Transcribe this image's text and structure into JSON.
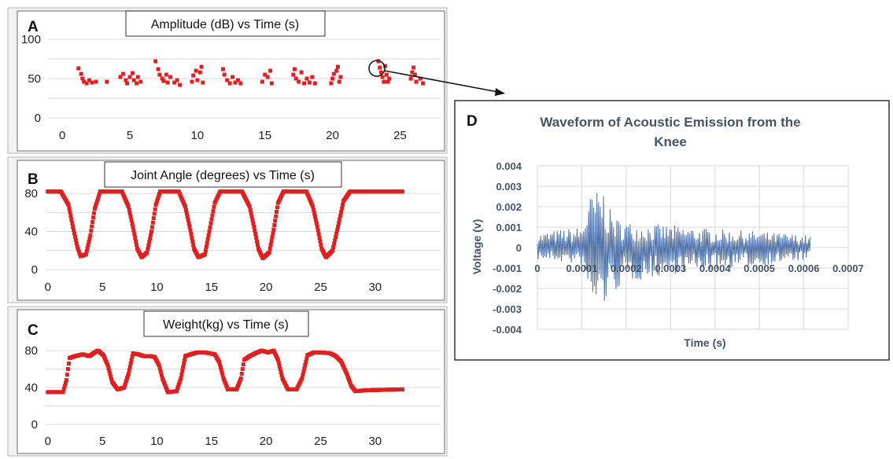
{
  "colors": {
    "red_series": "#e02020",
    "blue_series": "#4f72a8",
    "d_text": "#44546a"
  },
  "chart_data": [
    {
      "panel": "A",
      "type": "scatter",
      "title": "Amplitude (dB) vs Time (s)",
      "xlabel": "",
      "ylabel": "",
      "xlim": [
        -1,
        28
      ],
      "ylim": [
        0,
        110
      ],
      "x_ticks": [
        0,
        5,
        10,
        15,
        20,
        25
      ],
      "y_ticks": [
        0,
        50,
        100
      ],
      "series": [
        {
          "points": [
            [
              1.2,
              63
            ],
            [
              1.4,
              56
            ],
            [
              1.5,
              50
            ],
            [
              1.6,
              46
            ],
            [
              1.8,
              44
            ],
            [
              2.0,
              48
            ],
            [
              2.2,
              45
            ],
            [
              2.5,
              46
            ],
            [
              3.3,
              46
            ],
            [
              4.3,
              52
            ],
            [
              4.5,
              56
            ],
            [
              4.7,
              48
            ],
            [
              4.8,
              44
            ],
            [
              5.0,
              52
            ],
            [
              5.2,
              57
            ],
            [
              5.3,
              48
            ],
            [
              5.5,
              44
            ],
            [
              5.6,
              52
            ],
            [
              5.8,
              46
            ],
            [
              6.9,
              72
            ],
            [
              7.1,
              62
            ],
            [
              7.2,
              55
            ],
            [
              7.4,
              50
            ],
            [
              7.5,
              47
            ],
            [
              7.7,
              55
            ],
            [
              7.8,
              45
            ],
            [
              8.0,
              52
            ],
            [
              8.3,
              45
            ],
            [
              8.5,
              48
            ],
            [
              8.7,
              42
            ],
            [
              9.6,
              46
            ],
            [
              9.7,
              54
            ],
            [
              9.9,
              60
            ],
            [
              10.0,
              48
            ],
            [
              10.2,
              58
            ],
            [
              10.3,
              65
            ],
            [
              10.4,
              45
            ],
            [
              11.9,
              62
            ],
            [
              12.0,
              55
            ],
            [
              12.2,
              48
            ],
            [
              12.4,
              44
            ],
            [
              12.6,
              52
            ],
            [
              12.8,
              45
            ],
            [
              13.0,
              48
            ],
            [
              13.2,
              44
            ],
            [
              14.8,
              46
            ],
            [
              15.0,
              55
            ],
            [
              15.2,
              52
            ],
            [
              15.4,
              60
            ],
            [
              15.5,
              44
            ],
            [
              17.1,
              55
            ],
            [
              17.2,
              62
            ],
            [
              17.3,
              50
            ],
            [
              17.5,
              46
            ],
            [
              17.7,
              58
            ],
            [
              17.9,
              44
            ],
            [
              18.1,
              50
            ],
            [
              18.3,
              45
            ],
            [
              18.5,
              52
            ],
            [
              18.7,
              44
            ],
            [
              19.9,
              44
            ],
            [
              20.0,
              50
            ],
            [
              20.1,
              56
            ],
            [
              20.3,
              60
            ],
            [
              20.4,
              65
            ],
            [
              20.5,
              46
            ],
            [
              20.6,
              52
            ],
            [
              23.4,
              72
            ],
            [
              23.5,
              64
            ],
            [
              23.6,
              58
            ],
            [
              23.7,
              52
            ],
            [
              23.8,
              46
            ],
            [
              23.9,
              66
            ],
            [
              24.0,
              55
            ],
            [
              24.1,
              46
            ],
            [
              24.2,
              50
            ],
            [
              25.8,
              50
            ],
            [
              25.9,
              58
            ],
            [
              26.0,
              64
            ],
            [
              26.1,
              55
            ],
            [
              26.2,
              46
            ],
            [
              26.5,
              50
            ],
            [
              26.7,
              44
            ]
          ]
        }
      ],
      "annotation": "circled burst near t≈23.7 s, linked by arrow to panel D"
    },
    {
      "panel": "B",
      "type": "scatter",
      "title": "Joint Angle (degrees) vs Time (s)",
      "xlabel": "",
      "ylabel": "",
      "xlim": [
        -0.2,
        36
      ],
      "ylim": [
        0,
        90
      ],
      "x_ticks": [
        0,
        5,
        10,
        15,
        20,
        25,
        30
      ],
      "y_ticks": [
        0,
        40,
        80
      ],
      "series": [
        {
          "keyframes": [
            [
              0,
              82
            ],
            [
              1.2,
              82
            ],
            [
              1.9,
              68
            ],
            [
              2.3,
              45
            ],
            [
              2.7,
              24
            ],
            [
              3.0,
              14
            ],
            [
              3.5,
              16
            ],
            [
              3.9,
              36
            ],
            [
              4.3,
              64
            ],
            [
              4.8,
              82
            ],
            [
              6.8,
              82
            ],
            [
              7.4,
              66
            ],
            [
              7.8,
              45
            ],
            [
              8.2,
              22
            ],
            [
              8.6,
              13
            ],
            [
              9.1,
              18
            ],
            [
              9.5,
              40
            ],
            [
              9.9,
              68
            ],
            [
              10.3,
              82
            ],
            [
              12.0,
              82
            ],
            [
              12.6,
              66
            ],
            [
              13.0,
              45
            ],
            [
              13.4,
              22
            ],
            [
              13.8,
              13
            ],
            [
              14.4,
              16
            ],
            [
              14.8,
              40
            ],
            [
              15.3,
              70
            ],
            [
              15.8,
              82
            ],
            [
              17.8,
              82
            ],
            [
              18.5,
              66
            ],
            [
              18.9,
              45
            ],
            [
              19.3,
              22
            ],
            [
              19.7,
              12
            ],
            [
              20.3,
              18
            ],
            [
              20.7,
              42
            ],
            [
              21.1,
              70
            ],
            [
              21.6,
              82
            ],
            [
              23.7,
              82
            ],
            [
              24.3,
              66
            ],
            [
              24.7,
              45
            ],
            [
              25.1,
              22
            ],
            [
              25.5,
              13
            ],
            [
              26.1,
              20
            ],
            [
              26.6,
              45
            ],
            [
              27.1,
              72
            ],
            [
              27.7,
              82
            ],
            [
              32.5,
              82
            ]
          ]
        }
      ]
    },
    {
      "panel": "C",
      "type": "scatter",
      "title": "Weight(kg) vs Time (s)",
      "xlabel": "",
      "ylabel": "",
      "xlim": [
        -0.2,
        36
      ],
      "ylim": [
        0,
        92
      ],
      "x_ticks": [
        0,
        5,
        10,
        15,
        20,
        25,
        30
      ],
      "y_ticks": [
        0,
        40,
        80
      ],
      "series": [
        {
          "keyframes": [
            [
              0,
              35
            ],
            [
              1.4,
              35
            ],
            [
              1.7,
              48
            ],
            [
              2.0,
              72
            ],
            [
              2.5,
              74
            ],
            [
              3.2,
              76
            ],
            [
              3.8,
              74
            ],
            [
              4.3,
              78
            ],
            [
              4.6,
              80
            ],
            [
              5.1,
              75
            ],
            [
              5.5,
              64
            ],
            [
              5.9,
              46
            ],
            [
              6.4,
              38
            ],
            [
              7.0,
              40
            ],
            [
              7.4,
              55
            ],
            [
              7.8,
              77
            ],
            [
              8.3,
              76
            ],
            [
              8.8,
              74
            ],
            [
              9.4,
              74
            ],
            [
              9.8,
              73
            ],
            [
              10.2,
              64
            ],
            [
              10.5,
              50
            ],
            [
              11.0,
              35
            ],
            [
              11.8,
              36
            ],
            [
              12.2,
              50
            ],
            [
              12.6,
              74
            ],
            [
              13.1,
              76
            ],
            [
              13.7,
              78
            ],
            [
              14.4,
              78
            ],
            [
              15.3,
              76
            ],
            [
              15.7,
              68
            ],
            [
              16.1,
              50
            ],
            [
              16.5,
              38
            ],
            [
              17.3,
              38
            ],
            [
              17.7,
              50
            ],
            [
              18.0,
              70
            ],
            [
              18.5,
              74
            ],
            [
              19.0,
              77
            ],
            [
              19.6,
              80
            ],
            [
              20.2,
              78
            ],
            [
              20.7,
              80
            ],
            [
              21.1,
              70
            ],
            [
              21.5,
              50
            ],
            [
              22.0,
              38
            ],
            [
              22.8,
              38
            ],
            [
              23.3,
              50
            ],
            [
              23.8,
              75
            ],
            [
              24.4,
              78
            ],
            [
              25.1,
              78
            ],
            [
              25.9,
              77
            ],
            [
              26.4,
              74
            ],
            [
              26.9,
              68
            ],
            [
              27.4,
              55
            ],
            [
              27.8,
              42
            ],
            [
              28.2,
              36
            ],
            [
              29.2,
              37
            ],
            [
              32.5,
              38
            ]
          ]
        }
      ]
    },
    {
      "panel": "D",
      "type": "line",
      "title": "Waveform of Acoustic Emission from the Knee",
      "xlabel": "Time (s)",
      "ylabel": "Voltage (v)",
      "xlim": [
        0,
        0.0007
      ],
      "ylim": [
        -0.004,
        0.004
      ],
      "x_ticks": [
        "0",
        "0.0001",
        "0.0002",
        "0.0003",
        "0.0004",
        "0.0005",
        "0.0006",
        "0.0007"
      ],
      "y_ticks": [
        "0.004",
        "0.003",
        "0.002",
        "0.001",
        "0",
        "-0.001",
        "-0.002",
        "-0.003",
        "-0.004"
      ],
      "series": [
        {
          "x_range": [
            0,
            0.000615
          ],
          "envelope": [
            [
              0,
              0.0007
            ],
            [
              5e-05,
              0.0009
            ],
            [
              0.0001,
              0.001
            ],
            [
              0.000115,
              0.0025
            ],
            [
              0.000135,
              0.0028
            ],
            [
              0.00015,
              0.003
            ],
            [
              0.00016,
              0.002
            ],
            [
              0.00018,
              0.0014
            ],
            [
              0.00022,
              0.0012
            ],
            [
              0.0003,
              0.0011
            ],
            [
              0.0004,
              0.0009
            ],
            [
              0.0005,
              0.0008
            ],
            [
              0.000615,
              0.0006
            ]
          ],
          "envelope_neg": [
            [
              0,
              0.0006
            ],
            [
              5e-05,
              0.0007
            ],
            [
              0.0001,
              0.0009
            ],
            [
              0.000115,
              0.0025
            ],
            [
              0.000125,
              0.003
            ],
            [
              0.00015,
              0.0029
            ],
            [
              0.00017,
              0.0023
            ],
            [
              0.0002,
              0.0017
            ],
            [
              0.00026,
              0.0015
            ],
            [
              0.0003,
              0.0013
            ],
            [
              0.0004,
              0.0011
            ],
            [
              0.0005,
              0.0009
            ],
            [
              0.000615,
              0.0006
            ]
          ],
          "samples": 330
        }
      ]
    }
  ],
  "labels": {
    "A": "A",
    "B": "B",
    "C": "C",
    "D": "D"
  }
}
